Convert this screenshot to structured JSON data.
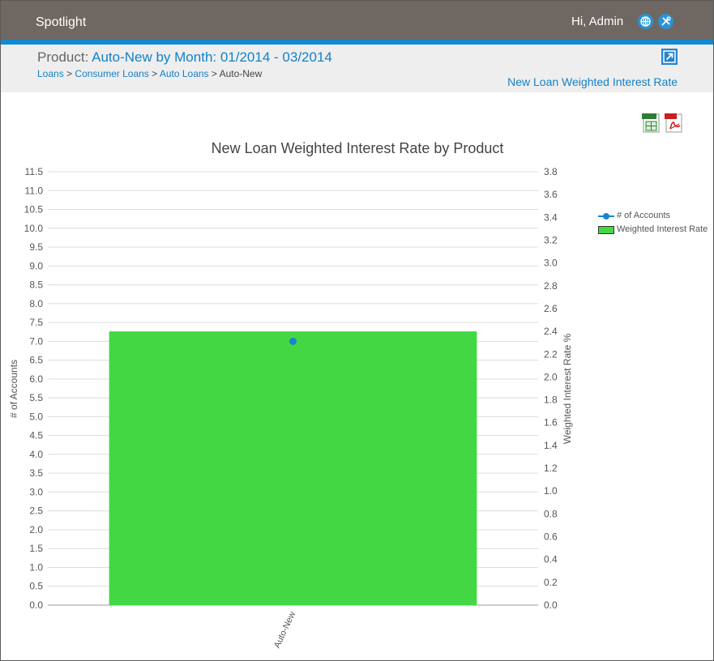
{
  "app": {
    "brand": "Spotlight",
    "greeting": "Hi, Admin",
    "header_icons": [
      "globe-icon",
      "tools-icon"
    ]
  },
  "page": {
    "title_prefix": "Product: ",
    "title_value": "Auto-New by Month: 01/2014 - 03/2014",
    "breadcrumb": [
      "Loans",
      "Consumer Loans",
      "Auto Loans",
      "Auto-New"
    ],
    "breadcrumb_sep": ">",
    "metric_link": "New Loan Weighted Interest Rate",
    "exports": [
      "xlsx-export-icon",
      "pdf-export-icon"
    ]
  },
  "colors": {
    "accent": "#1289d3",
    "topbar": "#6f6762",
    "bar": "#43d843",
    "line": "#1a84d0"
  },
  "chart_data": {
    "type": "bar",
    "title": "New Loan Weighted Interest Rate by Product",
    "categories": [
      "Auto-New"
    ],
    "series": [
      {
        "name": "# of Accounts",
        "type": "line",
        "axis": "left",
        "values": [
          7
        ]
      },
      {
        "name": "Weighted Interest Rate",
        "type": "bar",
        "axis": "right",
        "values": [
          2.4
        ]
      }
    ],
    "ylabel": "# of Accounts",
    "ylabel_right": "Weighted Interest Rate %",
    "ylim": [
      0,
      11.5
    ],
    "ylim_right": [
      0,
      3.8
    ],
    "yticks": [
      "0.0",
      "0.5",
      "1.0",
      "1.5",
      "2.0",
      "2.5",
      "3.0",
      "3.5",
      "4.0",
      "4.5",
      "5.0",
      "5.5",
      "6.0",
      "6.5",
      "7.0",
      "7.5",
      "8.0",
      "8.5",
      "9.0",
      "9.5",
      "10.0",
      "10.5",
      "11.0",
      "11.5"
    ],
    "yticks_right": [
      "0.0",
      "0.2",
      "0.4",
      "0.6",
      "0.8",
      "1.0",
      "1.2",
      "1.4",
      "1.6",
      "1.8",
      "2.0",
      "2.2",
      "2.4",
      "2.6",
      "2.8",
      "3.0",
      "3.2",
      "3.4",
      "3.6",
      "3.8"
    ],
    "grid": true,
    "legend_position": "right"
  }
}
